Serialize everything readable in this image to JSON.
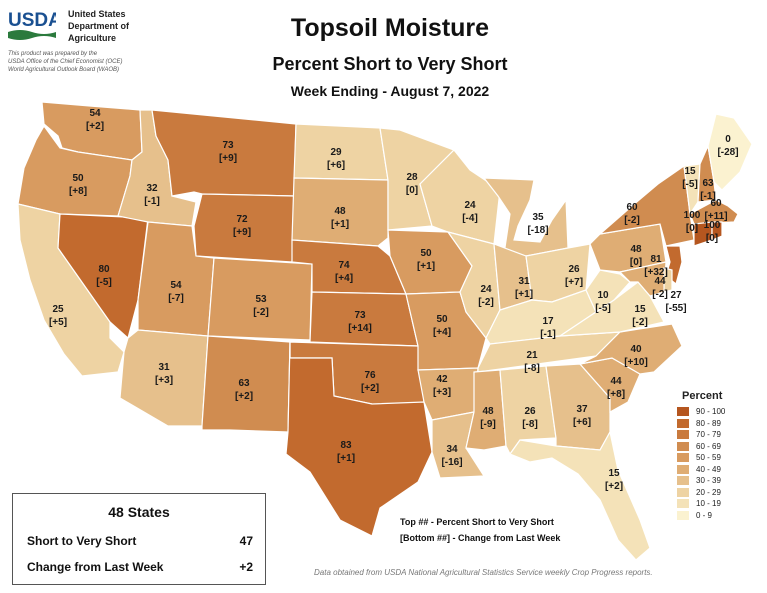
{
  "header": {
    "agency_lines": [
      "United States",
      "Department of",
      "Agriculture"
    ],
    "logo_text": "USDA",
    "disclaimer_lines": [
      "This product was prepared by the",
      "USDA Office of the Chief Economist (OCE)",
      "World Agricultural Outlook Board (WAOB)"
    ],
    "title": "Topsoil Moisture",
    "subtitle": "Percent Short to Very Short",
    "period": "Week Ending - August 7, 2022"
  },
  "legend": {
    "title": "Percent",
    "items": [
      {
        "label": "90 - 100",
        "color": "#B5561F"
      },
      {
        "label": "80 - 89",
        "color": "#C26A2E"
      },
      {
        "label": "70 - 79",
        "color": "#C97A3E"
      },
      {
        "label": "60 - 69",
        "color": "#D08C50"
      },
      {
        "label": "50 - 59",
        "color": "#D89B60"
      },
      {
        "label": "40 - 49",
        "color": "#DFAD74"
      },
      {
        "label": "30 - 39",
        "color": "#E6C08C"
      },
      {
        "label": "20 - 29",
        "color": "#EED3A3"
      },
      {
        "label": "10 - 19",
        "color": "#F4E2B8"
      },
      {
        "label": "0 - 9",
        "color": "#FBF2D0"
      }
    ]
  },
  "notes": {
    "top": "Top ## - Percent Short to Very Short",
    "bottom": "[Bottom ##] - Change from Last Week"
  },
  "source": "Data obtained from USDA National Agricultural Statistics Service weekly Crop Progress reports.",
  "summary": {
    "title": "48 States",
    "rows": [
      {
        "label": "Short to Very Short",
        "value": "47"
      },
      {
        "label": "Change from Last Week",
        "value": "+2"
      }
    ]
  },
  "states": [
    {
      "id": "WA",
      "value": "54",
      "change": "[+2]"
    },
    {
      "id": "OR",
      "value": "50",
      "change": "[+8]"
    },
    {
      "id": "CA",
      "value": "25",
      "change": "[+5]"
    },
    {
      "id": "NV",
      "value": "80",
      "change": "[-5]"
    },
    {
      "id": "ID",
      "value": "32",
      "change": "[-1]"
    },
    {
      "id": "MT",
      "value": "73",
      "change": "[+9]"
    },
    {
      "id": "WY",
      "value": "72",
      "change": "[+9]"
    },
    {
      "id": "UT",
      "value": "54",
      "change": "[-7]"
    },
    {
      "id": "AZ",
      "value": "31",
      "change": "[+3]"
    },
    {
      "id": "CO",
      "value": "53",
      "change": "[-2]"
    },
    {
      "id": "NM",
      "value": "63",
      "change": "[+2]"
    },
    {
      "id": "ND",
      "value": "29",
      "change": "[+6]"
    },
    {
      "id": "SD",
      "value": "48",
      "change": "[+1]"
    },
    {
      "id": "NE",
      "value": "74",
      "change": "[+4]"
    },
    {
      "id": "KS",
      "value": "73",
      "change": "[+14]"
    },
    {
      "id": "OK",
      "value": "76",
      "change": "[+2]"
    },
    {
      "id": "TX",
      "value": "83",
      "change": "[+1]"
    },
    {
      "id": "MN",
      "value": "28",
      "change": "[0]"
    },
    {
      "id": "IA",
      "value": "50",
      "change": "[+1]"
    },
    {
      "id": "MO",
      "value": "50",
      "change": "[+4]"
    },
    {
      "id": "AR",
      "value": "42",
      "change": "[+3]"
    },
    {
      "id": "LA",
      "value": "34",
      "change": "[-16]"
    },
    {
      "id": "WI",
      "value": "24",
      "change": "[-4]"
    },
    {
      "id": "IL",
      "value": "24",
      "change": "[-2]"
    },
    {
      "id": "MI",
      "value": "35",
      "change": "[-18]"
    },
    {
      "id": "IN",
      "value": "31",
      "change": "[+1]"
    },
    {
      "id": "OH",
      "value": "26",
      "change": "[+7]"
    },
    {
      "id": "KY",
      "value": "17",
      "change": "[-1]"
    },
    {
      "id": "TN",
      "value": "21",
      "change": "[-8]"
    },
    {
      "id": "MS",
      "value": "48",
      "change": "[-9]"
    },
    {
      "id": "AL",
      "value": "26",
      "change": "[-8]"
    },
    {
      "id": "GA",
      "value": "37",
      "change": "[+6]"
    },
    {
      "id": "FL",
      "value": "15",
      "change": "[+2]"
    },
    {
      "id": "SC",
      "value": "44",
      "change": "[+8]"
    },
    {
      "id": "NC",
      "value": "40",
      "change": "[+10]"
    },
    {
      "id": "VA",
      "value": "15",
      "change": "[-2]"
    },
    {
      "id": "WV",
      "value": "10",
      "change": "[-5]"
    },
    {
      "id": "PA",
      "value": "48",
      "change": "[0]"
    },
    {
      "id": "NY",
      "value": "60",
      "change": "[-2]"
    },
    {
      "id": "VT",
      "value": "15",
      "change": "[-5]"
    },
    {
      "id": "NH",
      "value": "63",
      "change": "[-1]"
    },
    {
      "id": "ME",
      "value": "0",
      "change": "[-28]"
    },
    {
      "id": "MA",
      "value": "60",
      "change": "[+11]"
    },
    {
      "id": "CT",
      "value": "100",
      "change": "[0]"
    },
    {
      "id": "RI",
      "value": "100",
      "change": "[0]"
    },
    {
      "id": "NJ",
      "value": "81",
      "change": "[+32]"
    },
    {
      "id": "MD",
      "value": "44",
      "change": "[-2]"
    },
    {
      "id": "DE",
      "value": "27",
      "change": "[-55]"
    }
  ]
}
